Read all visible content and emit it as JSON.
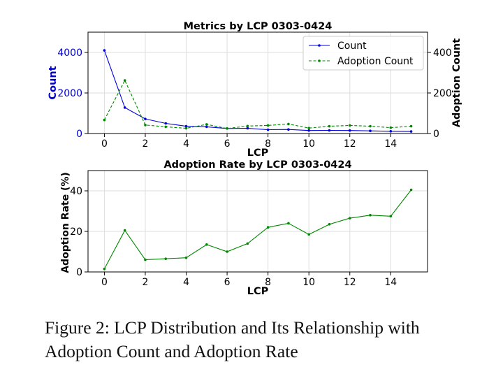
{
  "caption": "Figure 2: LCP Distribution and Its Relationship with Adoption Count and Adoption Rate",
  "chart_data": [
    {
      "type": "line",
      "title": "Metrics by LCP 0303-0424",
      "xlabel": "LCP",
      "x": [
        0,
        1,
        2,
        3,
        4,
        5,
        6,
        7,
        8,
        9,
        10,
        11,
        12,
        13,
        14,
        15
      ],
      "xticks": [
        0,
        2,
        4,
        6,
        8,
        10,
        12,
        14
      ],
      "xlim": [
        -0.8,
        15.8
      ],
      "grid": true,
      "legend_position": "top-right",
      "left_axis": {
        "label": "Count",
        "color": "#0000cc",
        "ylim": [
          0,
          5000
        ],
        "ticks": [
          0,
          2000,
          4000
        ],
        "tick_labels": [
          "0",
          "2000",
          "4000"
        ]
      },
      "right_axis": {
        "label": "Adoption Count",
        "color": "#000000",
        "ylim": [
          0,
          500
        ],
        "ticks": [
          0,
          200,
          400
        ],
        "tick_labels": [
          "0",
          "200",
          "400"
        ]
      },
      "series": [
        {
          "name": "Count",
          "axis": "left",
          "color": "#0000dd",
          "style": "solid",
          "values": [
            4100,
            1280,
            720,
            500,
            360,
            330,
            250,
            260,
            190,
            200,
            150,
            155,
            150,
            130,
            110,
            100
          ]
        },
        {
          "name": "Adoption Count",
          "axis": "right",
          "color": "#008800",
          "style": "dashed",
          "values": [
            67,
            262,
            42,
            33,
            26,
            45,
            25,
            37,
            40,
            47,
            27,
            36,
            40,
            36,
            29,
            36
          ]
        }
      ]
    },
    {
      "type": "line",
      "title": "Adoption Rate by LCP 0303-0424",
      "xlabel": "LCP",
      "ylabel": "Adoption Rate (%)",
      "x": [
        0,
        1,
        2,
        3,
        4,
        5,
        6,
        7,
        8,
        9,
        10,
        11,
        12,
        13,
        14,
        15
      ],
      "xticks": [
        0,
        2,
        4,
        6,
        8,
        10,
        12,
        14
      ],
      "xlim": [
        -0.8,
        15.8
      ],
      "ylim": [
        0,
        50
      ],
      "yticks": [
        0,
        20,
        40
      ],
      "grid": true,
      "series": [
        {
          "color": "#008800",
          "style": "solid",
          "values": [
            1.5,
            20.5,
            6.0,
            6.5,
            7.0,
            13.5,
            10.0,
            14.0,
            22.0,
            24.0,
            18.5,
            23.5,
            26.5,
            28.0,
            27.5,
            40.5
          ]
        }
      ]
    }
  ]
}
